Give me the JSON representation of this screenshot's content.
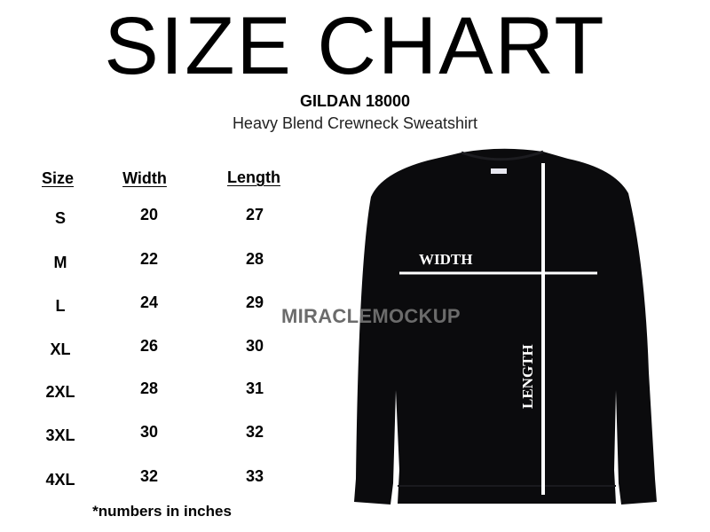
{
  "title": "SIZE CHART",
  "model": "GILDAN 18000",
  "description": "Heavy Blend Crewneck Sweatshirt",
  "table": {
    "headers": [
      "Size",
      "Width",
      "Length"
    ],
    "rows": [
      [
        "S",
        "20",
        "27"
      ],
      [
        "M",
        "22",
        "28"
      ],
      [
        "L",
        "24",
        "29"
      ],
      [
        "XL",
        "26",
        "30"
      ],
      [
        "2XL",
        "28",
        "31"
      ],
      [
        "3XL",
        "30",
        "32"
      ],
      [
        "4XL",
        "32",
        "33"
      ]
    ]
  },
  "note": "*numbers in inches",
  "diagram": {
    "width_label": "WIDTH",
    "length_label": "LENGTH",
    "garment_color": "#0b0b0d"
  },
  "watermark": "MIRACLEMOCKUP"
}
